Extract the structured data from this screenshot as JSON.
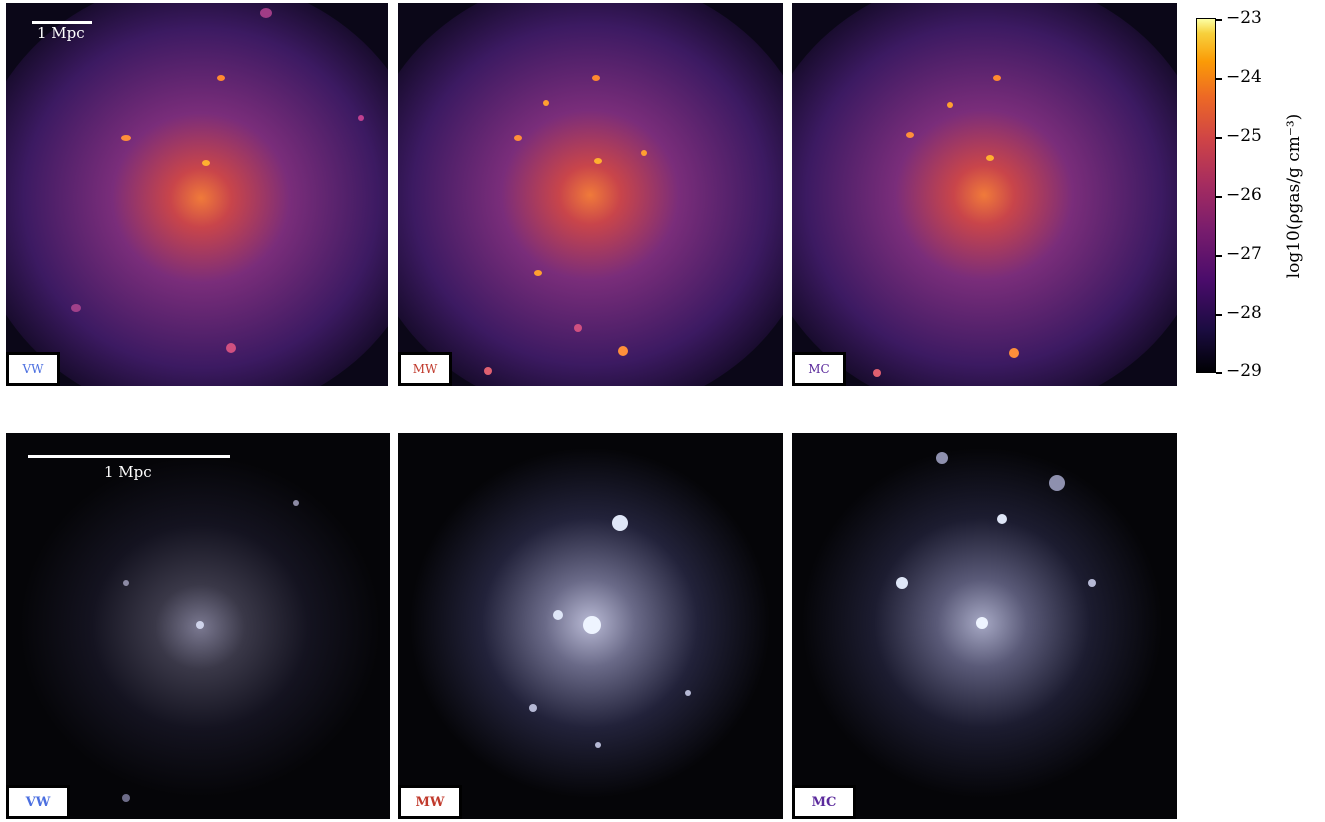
{
  "top_row": {
    "scale_label": "1 Mpc",
    "panels": [
      {
        "label": "VW",
        "label_color": "#4b6fe0"
      },
      {
        "label": "MW",
        "label_color": "#c0392b"
      },
      {
        "label": "MC",
        "label_color": "#5b2a9c"
      }
    ]
  },
  "bottom_row": {
    "scale_label": "1 Mpc",
    "panels": [
      {
        "label": "VW",
        "label_color": "#4b6fe0"
      },
      {
        "label": "MW",
        "label_color": "#c0392b"
      },
      {
        "label": "MC",
        "label_color": "#5b2a9c"
      }
    ]
  },
  "colorbar": {
    "label": "log10(ρgas/g cm⁻³)",
    "ticks": [
      "−23",
      "−24",
      "−25",
      "−26",
      "−27",
      "−28",
      "−29"
    ],
    "colormap": "inferno"
  }
}
